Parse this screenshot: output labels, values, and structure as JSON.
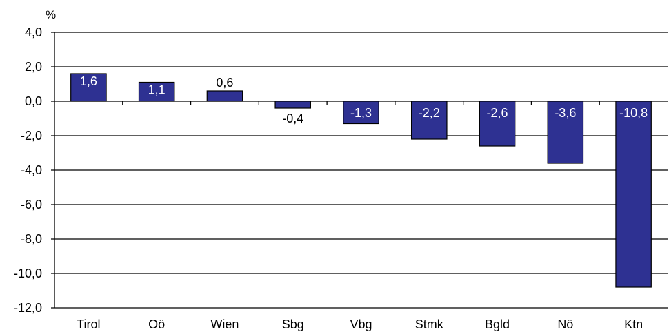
{
  "chart_data": {
    "type": "bar",
    "unit_label": "%",
    "categories": [
      "Tirol",
      "Oö",
      "Wien",
      "Sbg",
      "Vbg",
      "Stmk",
      "Bgld",
      "Nö",
      "Ktn"
    ],
    "values": [
      1.6,
      1.1,
      0.6,
      -0.4,
      -1.3,
      -2.2,
      -2.6,
      -3.6,
      -10.8
    ],
    "data_labels": [
      "1,6",
      "1,1",
      "0,6",
      "-0,4",
      "-1,3",
      "-2,2",
      "-2,6",
      "-3,6",
      "-10,8"
    ],
    "data_label_inside": [
      true,
      true,
      false,
      false,
      true,
      true,
      true,
      true,
      true
    ],
    "yticks": [
      4,
      2,
      0,
      -2,
      -4,
      -6,
      -8,
      -10,
      -12
    ],
    "ytick_labels": [
      "4,0",
      "2,0",
      "0,0",
      "-2,0",
      "-4,0",
      "-6,0",
      "-8,0",
      "-10,0",
      "-12,0"
    ],
    "ylim": [
      -12,
      4
    ],
    "grid": true,
    "colors": {
      "bar": "#2e3192",
      "bar_stroke": "#000000",
      "grid": "#000000",
      "label_inside": "#ffffff",
      "label_outside": "#000000"
    }
  }
}
